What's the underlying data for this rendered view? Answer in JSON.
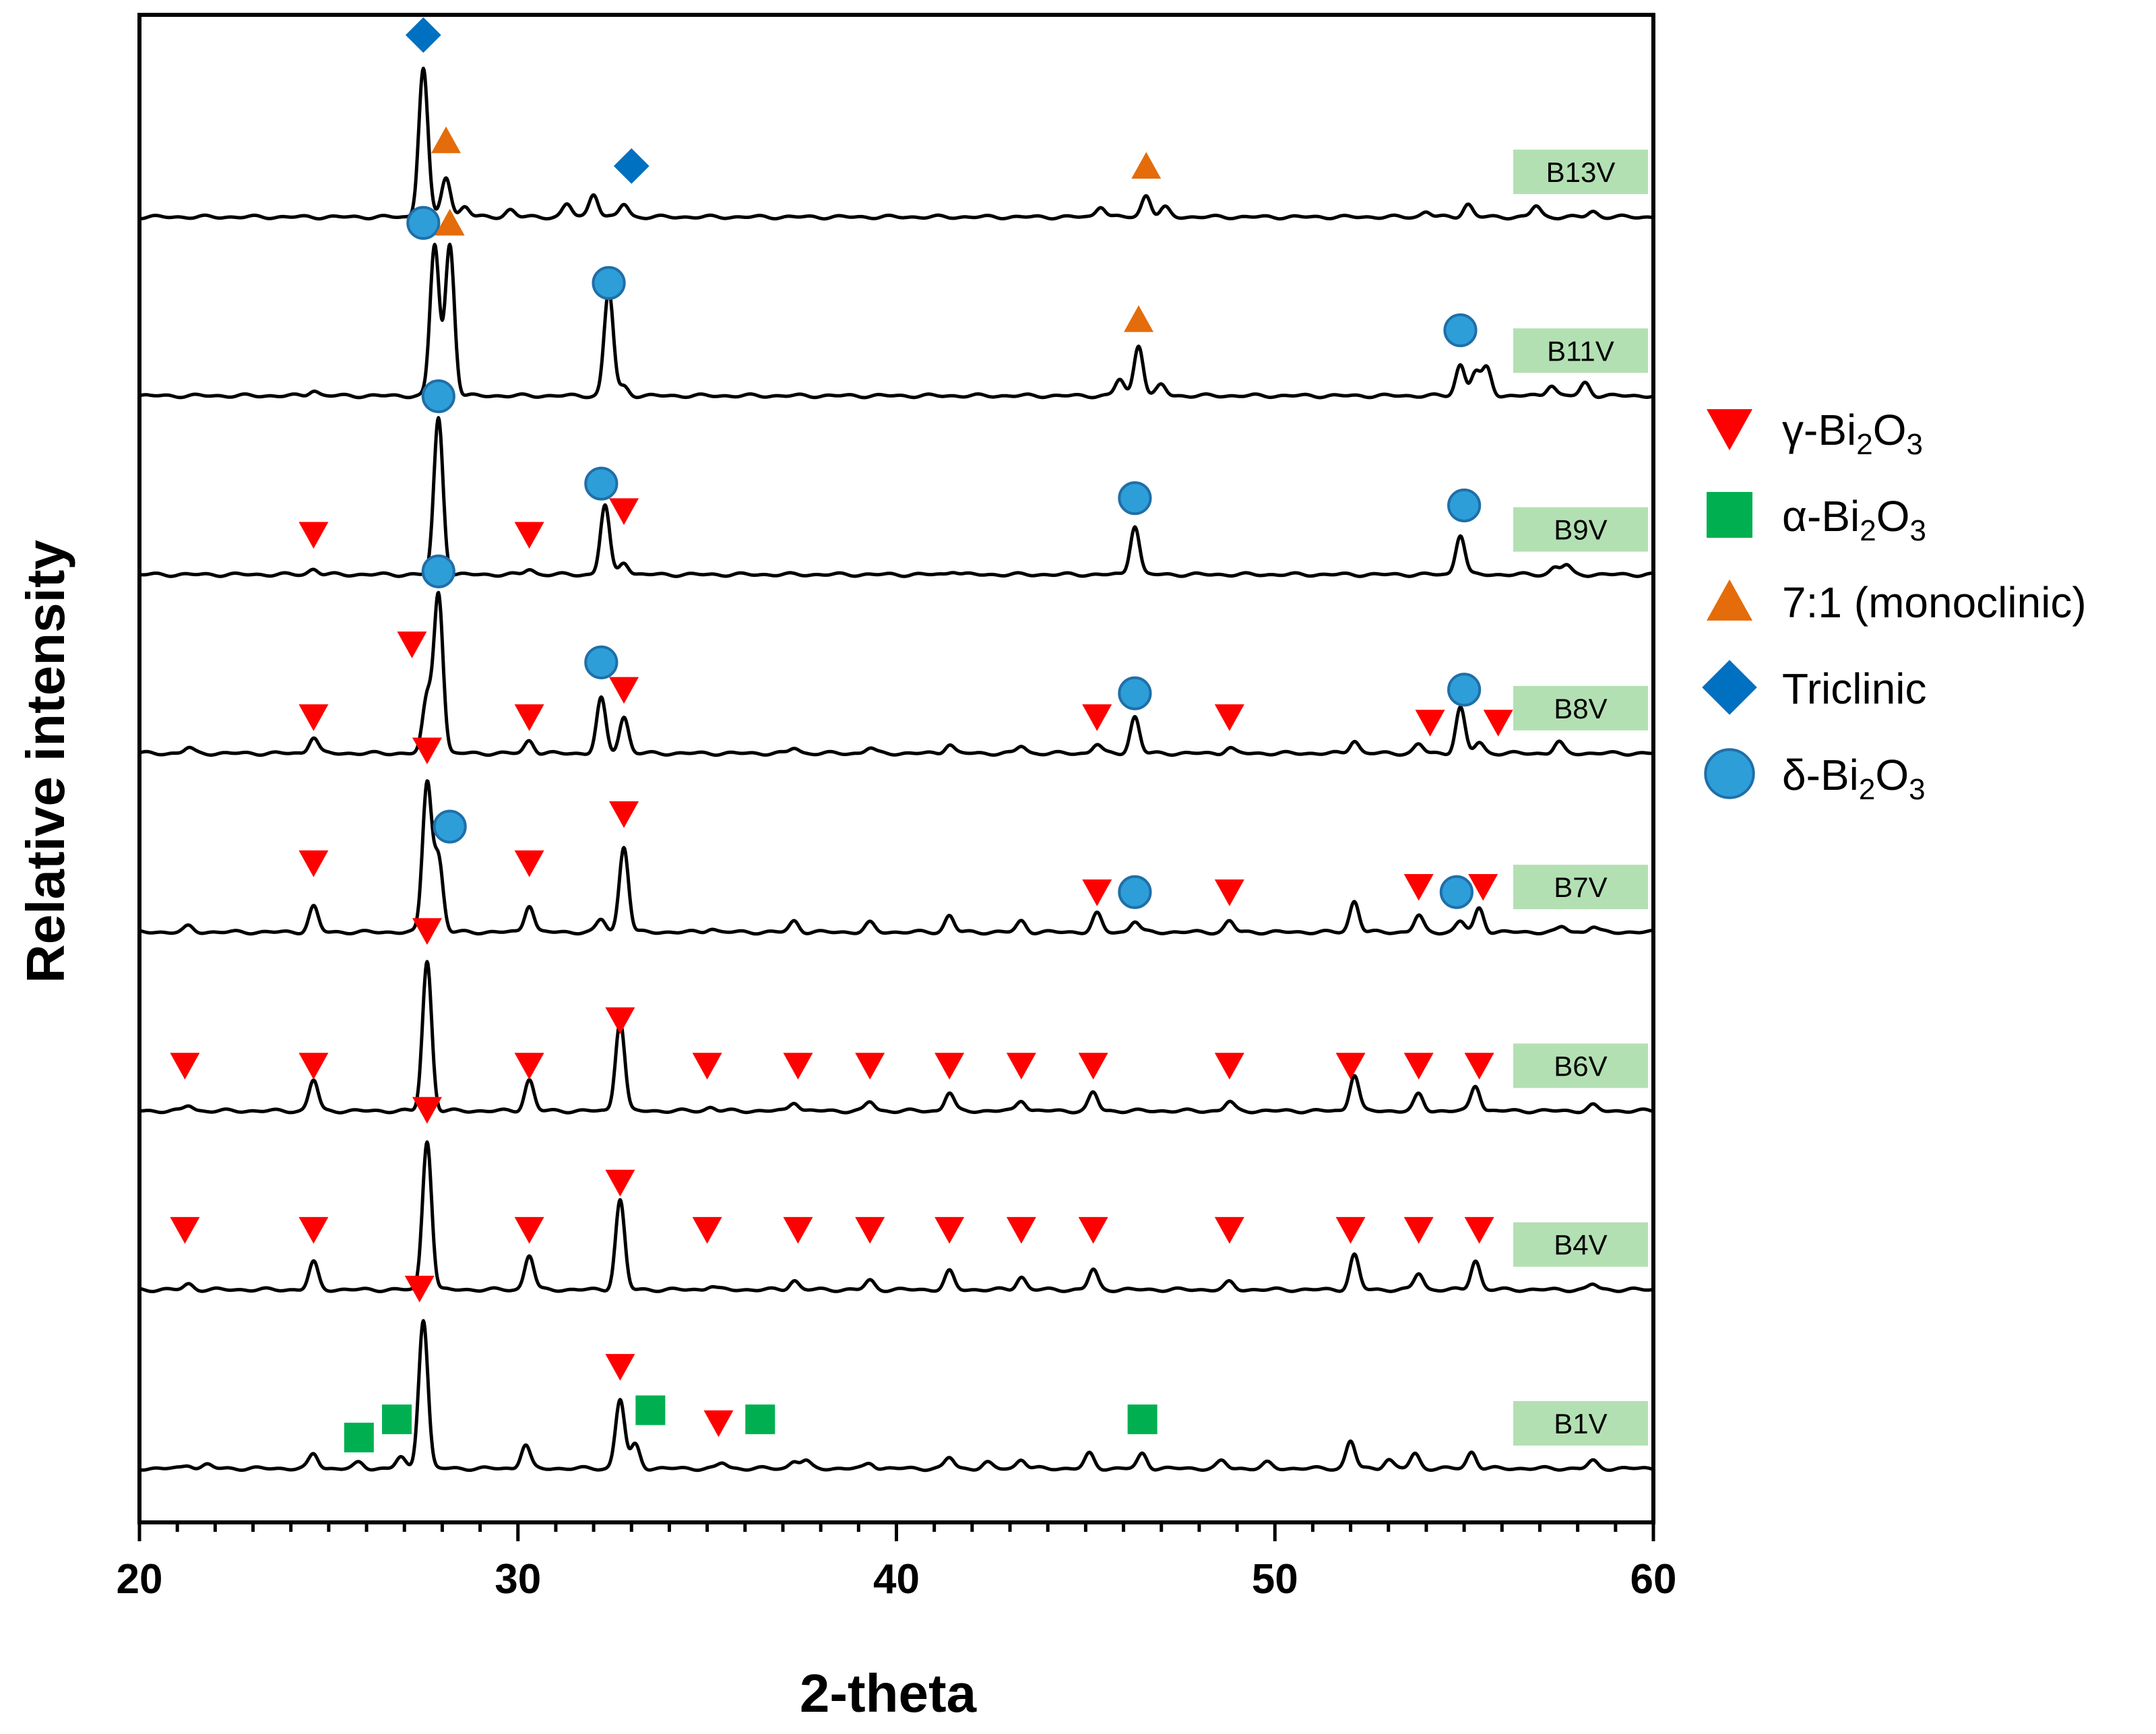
{
  "chart_data": {
    "type": "line",
    "title": "",
    "xlabel": "2-theta",
    "ylabel": "Relative intensity",
    "xlim": [
      20,
      60
    ],
    "xticks": [
      20,
      30,
      40,
      50,
      60
    ],
    "legend": {
      "placement": "right",
      "items": [
        {
          "name": "gamma",
          "label_main": "γ-Bi",
          "sub1": "2",
          "mid": "O",
          "sub2": "3",
          "marker": "triangle-down",
          "color": "#ff0000"
        },
        {
          "name": "alpha",
          "label_main": "α-Bi",
          "sub1": "2",
          "mid": "O",
          "sub2": "3",
          "marker": "square",
          "color": "#00b050"
        },
        {
          "name": "monoclinic",
          "label_main": "7:1 (monoclinic)",
          "sub1": "",
          "mid": "",
          "sub2": "",
          "marker": "triangle-up",
          "color": "#e46c0a"
        },
        {
          "name": "triclinic",
          "label_main": "Triclinic",
          "sub1": "",
          "mid": "",
          "sub2": "",
          "marker": "diamond",
          "color": "#0070c0"
        },
        {
          "name": "delta",
          "label_main": "δ-Bi",
          "sub1": "2",
          "mid": "O",
          "sub2": "3",
          "marker": "circle",
          "color": "#2e9ed8"
        }
      ]
    },
    "series": [
      {
        "name": "B13V",
        "peaks": [
          [
            27.5,
            0.82
          ],
          [
            28.1,
            0.22
          ],
          [
            28.6,
            0.06
          ],
          [
            29.8,
            0.04
          ],
          [
            31.3,
            0.07
          ],
          [
            32.0,
            0.13
          ],
          [
            32.8,
            0.07
          ],
          [
            45.4,
            0.06
          ],
          [
            46.6,
            0.12
          ],
          [
            47.1,
            0.05
          ],
          [
            54.0,
            0.03
          ],
          [
            55.1,
            0.07
          ],
          [
            56.9,
            0.06
          ],
          [
            58.4,
            0.03
          ]
        ],
        "markers": [
          {
            "type": "triclinic",
            "x": 27.5,
            "level": 1.0
          },
          {
            "type": "triclinic",
            "x": 33.0,
            "level": 0.28
          },
          {
            "type": "monoclinic",
            "x": 28.1,
            "level": 0.42
          },
          {
            "type": "monoclinic",
            "x": 46.6,
            "level": 0.28
          }
        ]
      },
      {
        "name": "B11V",
        "peaks": [
          [
            24.6,
            0.03
          ],
          [
            27.8,
            0.83
          ],
          [
            28.2,
            0.83
          ],
          [
            32.4,
            0.58
          ],
          [
            32.8,
            0.05
          ],
          [
            45.9,
            0.09
          ],
          [
            46.4,
            0.28
          ],
          [
            47.0,
            0.06
          ],
          [
            54.9,
            0.17
          ],
          [
            55.3,
            0.13
          ],
          [
            55.6,
            0.15
          ],
          [
            57.3,
            0.06
          ],
          [
            58.2,
            0.07
          ]
        ],
        "markers": [
          {
            "type": "delta",
            "x": 27.5,
            "level": 0.95
          },
          {
            "type": "monoclinic",
            "x": 28.2,
            "level": 0.95
          },
          {
            "type": "delta",
            "x": 32.4,
            "level": 0.62
          },
          {
            "type": "monoclinic",
            "x": 46.4,
            "level": 0.42
          },
          {
            "type": "delta",
            "x": 54.9,
            "level": 0.36
          }
        ]
      },
      {
        "name": "B9V",
        "peaks": [
          [
            24.6,
            0.03
          ],
          [
            27.9,
            0.86
          ],
          [
            30.3,
            0.03
          ],
          [
            32.3,
            0.38
          ],
          [
            32.8,
            0.07
          ],
          [
            41.5,
            0.02
          ],
          [
            46.3,
            0.27
          ],
          [
            54.9,
            0.22
          ],
          [
            57.4,
            0.04
          ],
          [
            57.7,
            0.05
          ]
        ],
        "markers": [
          {
            "type": "gamma",
            "x": 24.6,
            "level": 0.22
          },
          {
            "type": "delta",
            "x": 27.9,
            "level": 0.98
          },
          {
            "type": "gamma",
            "x": 30.3,
            "level": 0.22
          },
          {
            "type": "delta",
            "x": 32.2,
            "level": 0.5
          },
          {
            "type": "gamma",
            "x": 32.8,
            "level": 0.35
          },
          {
            "type": "delta",
            "x": 46.3,
            "level": 0.42
          },
          {
            "type": "delta",
            "x": 55.0,
            "level": 0.38
          }
        ]
      },
      {
        "name": "B8V",
        "peaks": [
          [
            21.3,
            0.03
          ],
          [
            24.6,
            0.09
          ],
          [
            27.6,
            0.3
          ],
          [
            27.9,
            0.88
          ],
          [
            30.3,
            0.07
          ],
          [
            32.2,
            0.3
          ],
          [
            32.8,
            0.2
          ],
          [
            37.3,
            0.03
          ],
          [
            39.3,
            0.03
          ],
          [
            41.4,
            0.05
          ],
          [
            43.3,
            0.04
          ],
          [
            45.3,
            0.05
          ],
          [
            46.3,
            0.2
          ],
          [
            48.8,
            0.03
          ],
          [
            52.1,
            0.07
          ],
          [
            53.8,
            0.05
          ],
          [
            54.9,
            0.25
          ],
          [
            55.4,
            0.06
          ],
          [
            57.5,
            0.06
          ]
        ],
        "markers": [
          {
            "type": "gamma",
            "x": 24.6,
            "level": 0.2
          },
          {
            "type": "gamma",
            "x": 27.2,
            "level": 0.6
          },
          {
            "type": "delta",
            "x": 27.9,
            "level": 1.0
          },
          {
            "type": "gamma",
            "x": 30.3,
            "level": 0.2
          },
          {
            "type": "delta",
            "x": 32.2,
            "level": 0.5
          },
          {
            "type": "gamma",
            "x": 32.8,
            "level": 0.35
          },
          {
            "type": "gamma",
            "x": 45.3,
            "level": 0.2
          },
          {
            "type": "delta",
            "x": 46.3,
            "level": 0.33
          },
          {
            "type": "gamma",
            "x": 48.8,
            "level": 0.2
          },
          {
            "type": "gamma",
            "x": 54.1,
            "level": 0.17
          },
          {
            "type": "delta",
            "x": 55.0,
            "level": 0.35
          },
          {
            "type": "gamma",
            "x": 55.9,
            "level": 0.17
          }
        ]
      },
      {
        "name": "B7V",
        "peaks": [
          [
            21.3,
            0.03
          ],
          [
            24.6,
            0.14
          ],
          [
            27.6,
            0.82
          ],
          [
            27.9,
            0.4
          ],
          [
            30.3,
            0.15
          ],
          [
            32.2,
            0.07
          ],
          [
            32.8,
            0.47
          ],
          [
            35.1,
            0.02
          ],
          [
            37.3,
            0.06
          ],
          [
            39.3,
            0.05
          ],
          [
            41.4,
            0.09
          ],
          [
            43.3,
            0.06
          ],
          [
            45.3,
            0.1
          ],
          [
            46.3,
            0.06
          ],
          [
            48.8,
            0.06
          ],
          [
            52.1,
            0.17
          ],
          [
            53.8,
            0.09
          ],
          [
            54.9,
            0.06
          ],
          [
            55.4,
            0.13
          ],
          [
            57.6,
            0.03
          ],
          [
            58.4,
            0.03
          ]
        ],
        "markers": [
          {
            "type": "gamma",
            "x": 24.6,
            "level": 0.38
          },
          {
            "type": "gamma",
            "x": 27.6,
            "level": 1.0
          },
          {
            "type": "delta",
            "x": 28.2,
            "level": 0.58
          },
          {
            "type": "gamma",
            "x": 30.3,
            "level": 0.38
          },
          {
            "type": "gamma",
            "x": 32.8,
            "level": 0.65
          },
          {
            "type": "gamma",
            "x": 45.3,
            "level": 0.22
          },
          {
            "type": "delta",
            "x": 46.3,
            "level": 0.22
          },
          {
            "type": "gamma",
            "x": 48.8,
            "level": 0.22
          },
          {
            "type": "gamma",
            "x": 53.8,
            "level": 0.25
          },
          {
            "type": "delta",
            "x": 54.8,
            "level": 0.22
          },
          {
            "type": "gamma",
            "x": 55.5,
            "level": 0.25
          }
        ]
      },
      {
        "name": "B6V",
        "peaks": [
          [
            21.3,
            0.03
          ],
          [
            24.6,
            0.17
          ],
          [
            27.6,
            0.82
          ],
          [
            30.3,
            0.17
          ],
          [
            32.7,
            0.5
          ],
          [
            35.1,
            0.02
          ],
          [
            37.3,
            0.05
          ],
          [
            39.3,
            0.05
          ],
          [
            41.4,
            0.1
          ],
          [
            43.3,
            0.06
          ],
          [
            45.2,
            0.1
          ],
          [
            48.8,
            0.05
          ],
          [
            52.1,
            0.2
          ],
          [
            53.8,
            0.09
          ],
          [
            55.3,
            0.14
          ],
          [
            58.4,
            0.03
          ]
        ],
        "markers": [
          {
            "type": "gamma",
            "x": 21.2,
            "level": 0.25
          },
          {
            "type": "gamma",
            "x": 24.6,
            "level": 0.25
          },
          {
            "type": "gamma",
            "x": 27.6,
            "level": 0.99
          },
          {
            "type": "gamma",
            "x": 30.3,
            "level": 0.25
          },
          {
            "type": "gamma",
            "x": 32.7,
            "level": 0.5
          },
          {
            "type": "gamma",
            "x": 35.0,
            "level": 0.25
          },
          {
            "type": "gamma",
            "x": 37.4,
            "level": 0.25
          },
          {
            "type": "gamma",
            "x": 39.3,
            "level": 0.25
          },
          {
            "type": "gamma",
            "x": 41.4,
            "level": 0.25
          },
          {
            "type": "gamma",
            "x": 43.3,
            "level": 0.25
          },
          {
            "type": "gamma",
            "x": 45.2,
            "level": 0.25
          },
          {
            "type": "gamma",
            "x": 48.8,
            "level": 0.25
          },
          {
            "type": "gamma",
            "x": 52.0,
            "level": 0.25
          },
          {
            "type": "gamma",
            "x": 53.8,
            "level": 0.25
          },
          {
            "type": "gamma",
            "x": 55.4,
            "level": 0.25
          }
        ]
      },
      {
        "name": "B4V",
        "peaks": [
          [
            21.3,
            0.03
          ],
          [
            24.6,
            0.15
          ],
          [
            27.6,
            0.82
          ],
          [
            30.3,
            0.19
          ],
          [
            32.7,
            0.49
          ],
          [
            35.1,
            0.02
          ],
          [
            37.3,
            0.05
          ],
          [
            39.3,
            0.05
          ],
          [
            41.4,
            0.1
          ],
          [
            43.3,
            0.07
          ],
          [
            45.2,
            0.11
          ],
          [
            48.8,
            0.04
          ],
          [
            52.1,
            0.19
          ],
          [
            53.8,
            0.09
          ],
          [
            55.3,
            0.16
          ],
          [
            58.4,
            0.03
          ]
        ],
        "markers": [
          {
            "type": "gamma",
            "x": 21.2,
            "level": 0.33
          },
          {
            "type": "gamma",
            "x": 24.6,
            "level": 0.33
          },
          {
            "type": "gamma",
            "x": 27.6,
            "level": 0.99
          },
          {
            "type": "gamma",
            "x": 30.3,
            "level": 0.33
          },
          {
            "type": "gamma",
            "x": 32.7,
            "level": 0.59
          },
          {
            "type": "gamma",
            "x": 35.0,
            "level": 0.33
          },
          {
            "type": "gamma",
            "x": 37.4,
            "level": 0.33
          },
          {
            "type": "gamma",
            "x": 39.3,
            "level": 0.33
          },
          {
            "type": "gamma",
            "x": 41.4,
            "level": 0.33
          },
          {
            "type": "gamma",
            "x": 43.3,
            "level": 0.33
          },
          {
            "type": "gamma",
            "x": 45.2,
            "level": 0.33
          },
          {
            "type": "gamma",
            "x": 48.8,
            "level": 0.33
          },
          {
            "type": "gamma",
            "x": 52.0,
            "level": 0.33
          },
          {
            "type": "gamma",
            "x": 53.8,
            "level": 0.33
          },
          {
            "type": "gamma",
            "x": 55.4,
            "level": 0.33
          }
        ]
      },
      {
        "name": "B1V",
        "peaks": [
          [
            21.3,
            0.02
          ],
          [
            21.8,
            0.02
          ],
          [
            24.6,
            0.08
          ],
          [
            25.8,
            0.03
          ],
          [
            26.9,
            0.06
          ],
          [
            27.5,
            0.82
          ],
          [
            30.2,
            0.13
          ],
          [
            32.7,
            0.38
          ],
          [
            33.1,
            0.13
          ],
          [
            35.4,
            0.03
          ],
          [
            37.3,
            0.04
          ],
          [
            37.6,
            0.04
          ],
          [
            39.3,
            0.03
          ],
          [
            41.4,
            0.06
          ],
          [
            42.4,
            0.03
          ],
          [
            43.3,
            0.05
          ],
          [
            45.1,
            0.08
          ],
          [
            46.5,
            0.08
          ],
          [
            48.6,
            0.04
          ],
          [
            49.8,
            0.03
          ],
          [
            52.0,
            0.15
          ],
          [
            53.0,
            0.05
          ],
          [
            53.7,
            0.08
          ],
          [
            55.2,
            0.09
          ],
          [
            58.4,
            0.04
          ]
        ],
        "markers": [
          {
            "type": "gamma",
            "x": 27.4,
            "level": 0.99
          },
          {
            "type": "gamma",
            "x": 32.7,
            "level": 0.56
          },
          {
            "type": "gamma",
            "x": 35.3,
            "level": 0.25
          },
          {
            "type": "alpha",
            "x": 25.8,
            "level": 0.17
          },
          {
            "type": "alpha",
            "x": 26.8,
            "level": 0.27
          },
          {
            "type": "alpha",
            "x": 33.5,
            "level": 0.32
          },
          {
            "type": "alpha",
            "x": 36.4,
            "level": 0.27
          },
          {
            "type": "alpha",
            "x": 46.5,
            "level": 0.27
          }
        ]
      }
    ]
  }
}
